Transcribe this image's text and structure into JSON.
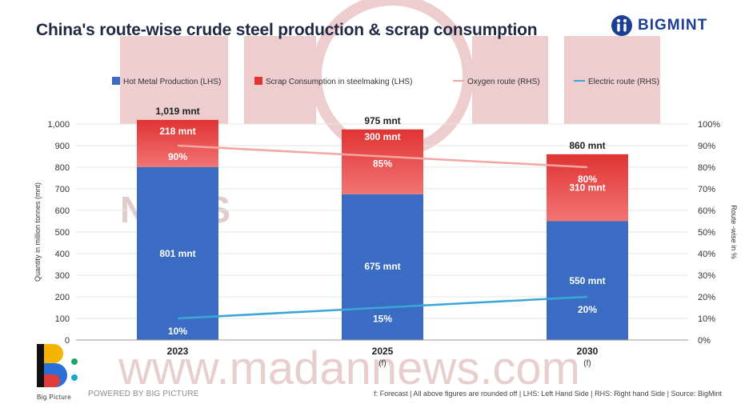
{
  "title": "China's route-wise crude steel production & scrap consumption",
  "brand": {
    "name": "BIGMINT",
    "color": "#1c3f94"
  },
  "watermark": {
    "text": "www.madannews.com",
    "news": "NEWS"
  },
  "footer": {
    "powered_by": "POWERED BY BIG PICTURE",
    "logo_caption": "Big Picture",
    "note": "f: Forecast | All above figures are rounded off | LHS: Left Hand Side | RHS: Right hand Side | Source: BigMint"
  },
  "colors": {
    "hot_metal": "#3a6cc4",
    "scrap_top": "#e03333",
    "scrap_bottom": "#f27474",
    "oxygen_line": "#f2a7a3",
    "electric_line": "#3aa6d6",
    "axis_text": "#333333"
  },
  "chart_data": {
    "type": "bar",
    "subtype": "stacked bar with dual-axis lines",
    "categories": [
      "2023",
      "2025",
      "2030"
    ],
    "category_notes": [
      "",
      "(f)",
      "(f)"
    ],
    "ylabel": "Quantity in million tonnes (mnt)",
    "y2label": "Route -wise in %",
    "ylim": [
      0,
      1000
    ],
    "y2lim": [
      0,
      100
    ],
    "yticks": [
      "0",
      "100",
      "200",
      "300",
      "400",
      "500",
      "600",
      "700",
      "800",
      "900",
      "1,000"
    ],
    "y2ticks": [
      "0%",
      "10%",
      "20%",
      "30%",
      "40%",
      "50%",
      "60%",
      "70%",
      "80%",
      "90%",
      "100%"
    ],
    "legend_position": "top",
    "series": [
      {
        "name": "Hot Metal Production (LHS)",
        "axis": "left",
        "kind": "bar",
        "values": [
          801,
          675,
          550
        ],
        "labels": [
          "801 mnt",
          "675 mnt",
          "550 mnt"
        ]
      },
      {
        "name": "Scrap Consumption in steelmaking (LHS)",
        "axis": "left",
        "kind": "bar",
        "values": [
          218,
          300,
          310
        ],
        "labels": [
          "218 mnt",
          "300 mnt",
          "310 mnt"
        ]
      },
      {
        "name": "Oxygen route (RHS)",
        "axis": "right",
        "kind": "line",
        "values": [
          90,
          85,
          80
        ],
        "labels": [
          "90%",
          "85%",
          "80%"
        ]
      },
      {
        "name": "Electric route (RHS)",
        "axis": "right",
        "kind": "line",
        "values": [
          10,
          15,
          20
        ],
        "labels": [
          "10%",
          "15%",
          "20%"
        ]
      }
    ],
    "totals": [
      1019,
      975,
      860
    ],
    "total_labels": [
      "1,019 mnt",
      "975 mnt",
      "860 mnt"
    ]
  }
}
